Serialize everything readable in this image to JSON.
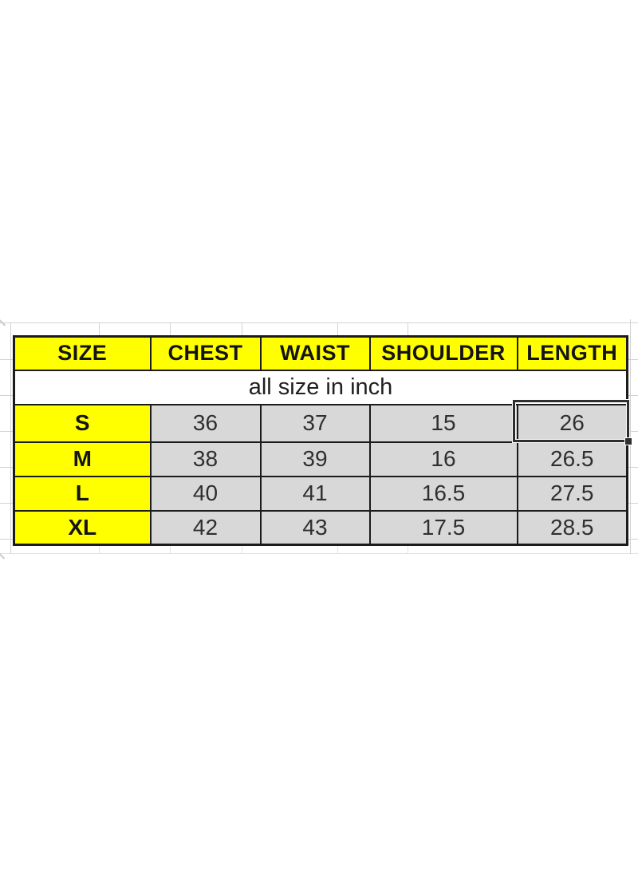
{
  "colors": {
    "background": "#ffffff",
    "header_fill": "#ffff00",
    "size_column_fill": "#ffff00",
    "data_cell_fill": "#d8d8d8",
    "note_fill": "#ffffff",
    "table_border": "#1b1b1b",
    "sheet_gridline": "#d2d2d2",
    "selection_border": "#2e2e2e",
    "text": "#1f1f1f"
  },
  "size_chart": {
    "columns": [
      "SIZE",
      "CHEST",
      "WAIST",
      "SHOULDER",
      "LENGTH"
    ],
    "unit_note": "all size in inch",
    "rows": [
      {
        "size": "S",
        "chest": "36",
        "waist": "37",
        "shoulder": "15",
        "length": "26"
      },
      {
        "size": "M",
        "chest": "38",
        "waist": "39",
        "shoulder": "16",
        "length": "26.5"
      },
      {
        "size": "L",
        "chest": "40",
        "waist": "41",
        "shoulder": "16.5",
        "length": "27.5"
      },
      {
        "size": "XL",
        "chest": "42",
        "waist": "43",
        "shoulder": "17.5",
        "length": "28.5"
      }
    ],
    "selection": {
      "selected_value": "26",
      "selected_row": "S",
      "selected_column": "LENGTH"
    }
  }
}
